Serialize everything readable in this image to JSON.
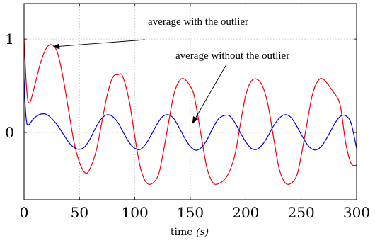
{
  "chart_data": {
    "type": "line",
    "title": "",
    "xlabel_text": "time",
    "xlabel_unit": "(s)",
    "ylabel": "",
    "xlim": [
      0,
      300
    ],
    "ylim": [
      -0.72,
      1.38
    ],
    "grid": true,
    "x_ticks": [
      0,
      50,
      100,
      150,
      200,
      250,
      300
    ],
    "y_ticks": [
      0,
      1
    ],
    "x_tick_labels": [
      "0",
      "50",
      "100",
      "150",
      "200",
      "250",
      "300"
    ],
    "y_tick_labels": [
      "0",
      "1"
    ],
    "annotations": [
      {
        "text": "average with the outlier",
        "points_to": {
          "x": 25,
          "y": 0.94
        }
      },
      {
        "text": "average without the outlier",
        "points_to": {
          "x": 152,
          "y": 0.1
        }
      }
    ],
    "series": [
      {
        "color": "#e8000b",
        "x": [
          0,
          1,
          2,
          3,
          4,
          6,
          10,
          15,
          20,
          25,
          30,
          35,
          40,
          45,
          50,
          55,
          59,
          65,
          70,
          75,
          80,
          85,
          89,
          95,
          100,
          105,
          110,
          115,
          121,
          125,
          130,
          135,
          140,
          145,
          152,
          155,
          160,
          165,
          170,
          175,
          183,
          190,
          195,
          200,
          205,
          210,
          215,
          220,
          225,
          230,
          235,
          240,
          246,
          250,
          255,
          260,
          265,
          270,
          278,
          285,
          290,
          295,
          300
        ],
        "y": [
          1.0,
          0.75,
          0.52,
          0.38,
          0.32,
          0.34,
          0.52,
          0.75,
          0.9,
          0.94,
          0.86,
          0.6,
          0.25,
          -0.1,
          -0.32,
          -0.43,
          -0.4,
          -0.2,
          0.1,
          0.4,
          0.59,
          0.62,
          0.6,
          0.33,
          -0.05,
          -0.38,
          -0.53,
          -0.55,
          -0.46,
          -0.25,
          0.08,
          0.4,
          0.55,
          0.57,
          0.45,
          0.3,
          -0.05,
          -0.38,
          -0.53,
          -0.55,
          -0.47,
          -0.25,
          0.08,
          0.4,
          0.55,
          0.57,
          0.5,
          0.3,
          -0.05,
          -0.38,
          -0.53,
          -0.55,
          -0.46,
          -0.25,
          0.08,
          0.4,
          0.55,
          0.57,
          0.45,
          0.3,
          -0.1,
          -0.33,
          -0.35
        ]
      },
      {
        "color": "#0000e6",
        "x": [
          0,
          1,
          2,
          3,
          5,
          8,
          12,
          17,
          22,
          30,
          40,
          45,
          50,
          55,
          60,
          65,
          70,
          75,
          80,
          85,
          90,
          95,
          100,
          105,
          110,
          115,
          120,
          125,
          130,
          135,
          140,
          145,
          150,
          155,
          160,
          165,
          170,
          175,
          180,
          185,
          190,
          195,
          200,
          205,
          210,
          215,
          220,
          225,
          230,
          235,
          240,
          245,
          250,
          255,
          260,
          265,
          270,
          275,
          280,
          285,
          290,
          295,
          300
        ],
        "y": [
          0.58,
          0.3,
          0.14,
          0.08,
          0.09,
          0.14,
          0.18,
          0.2,
          0.18,
          0.08,
          -0.1,
          -0.16,
          -0.18,
          -0.15,
          -0.06,
          0.06,
          0.15,
          0.19,
          0.17,
          0.1,
          -0.01,
          -0.11,
          -0.17,
          -0.18,
          -0.12,
          -0.02,
          0.09,
          0.17,
          0.19,
          0.15,
          0.05,
          -0.06,
          -0.15,
          -0.19,
          -0.16,
          -0.08,
          0.04,
          0.14,
          0.18,
          0.18,
          0.11,
          0.0,
          -0.1,
          -0.17,
          -0.18,
          -0.13,
          -0.04,
          0.07,
          0.15,
          0.19,
          0.17,
          0.09,
          -0.02,
          -0.12,
          -0.18,
          -0.18,
          -0.12,
          -0.02,
          0.09,
          0.17,
          0.18,
          0.1,
          -0.17
        ]
      }
    ]
  }
}
